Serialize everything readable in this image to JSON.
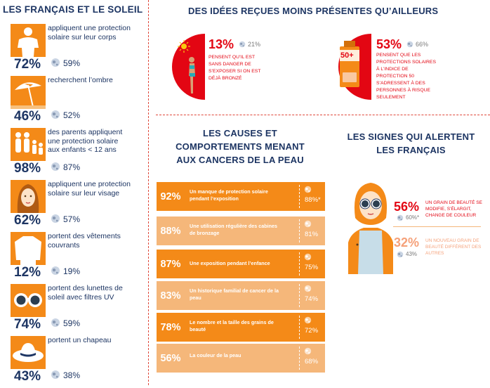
{
  "left": {
    "title": "LES FRANÇAIS ET LE SOLEIL",
    "items": [
      {
        "icon": "person-tshirt-icon",
        "text": "appliquent une protection solaire sur leur corps",
        "pct": "72%",
        "world": "59%"
      },
      {
        "icon": "beach-umbrella-icon",
        "text": "recherchent l’ombre",
        "pct": "46%",
        "world": "52%"
      },
      {
        "icon": "family-icon",
        "text": "des parents appliquent une protection solaire aux enfants < 12 ans",
        "pct": "98%",
        "world": "87%"
      },
      {
        "icon": "woman-face-icon",
        "text": "appliquent une protection solaire sur leur visage",
        "pct": "62%",
        "world": "57%"
      },
      {
        "icon": "long-sleeve-shirt-icon",
        "text": "portent des vêtements couvrants",
        "pct": "12%",
        "world": "19%"
      },
      {
        "icon": "sunglasses-icon",
        "text": "portent des lunettes de soleil avec filtres UV",
        "pct": "74%",
        "world": "59%"
      },
      {
        "icon": "sun-hat-icon",
        "text": "portent un chapeau",
        "pct": "43%",
        "world": "38%"
      }
    ]
  },
  "ideas": {
    "title": "DES IDÉES REÇUES MOINS PRÉSENTES QU’AILLEURS",
    "items": [
      {
        "icon": "tanned-woman-sun-icon",
        "pct": "13%",
        "world": "21%",
        "text": "PENSENT QU’IL EST SANS DANGER DE S’EXPOSER SI ON EST DÉJÀ BRONZÉ"
      },
      {
        "icon": "sunscreen-bottle-icon",
        "bottle_label": "50+",
        "pct": "53%",
        "world": "66%",
        "text": "PENSENT QUE LES PROTECTIONS SOLAIRES À L’INDICE DE PROTECTION 50 S’ADRESSENT À DES PERSONNES À RISQUE SEULEMENT"
      }
    ]
  },
  "causes": {
    "title_line1": "LES CAUSES ET",
    "title_line2": "COMPORTEMENTS MENANT",
    "title_line3": "AUX CANCERS DE LA PEAU"
  },
  "signs": {
    "title_line1": "LES SIGNES QUI ALERTENT",
    "title_line2": "LES FRANÇAIS",
    "items": [
      {
        "pct": "56%",
        "world": "60%*",
        "text": "UN GRAIN DE BEAUTÉ SE MODIFIE, S’ÉLARGIT, CHANGE DE COULEUR"
      },
      {
        "pct": "32%",
        "world": "43%",
        "text": "UN NOUVEAU GRAIN DE BEAUTÉ DIFFÉRENT DES AUTRES"
      }
    ]
  },
  "colors": {
    "orange": "#f48a18",
    "light_orange": "#f5b77a",
    "red": "#e30613",
    "navy": "#1d3563"
  },
  "chart_data": {
    "type": "bar",
    "title": "LES CAUSES ET COMPORTEMENTS MENANT AUX CANCERS DE LA PEAU",
    "categories": [
      "Un manque de protection solaire pendant l’exposition",
      "Une utilisation régulière des cabines de bronzage",
      "Une exposition pendant l’enfance",
      "Un historique familial de cancer de la peau",
      "Le nombre et la taille des grains de beauté",
      "La couleur de la peau"
    ],
    "series": [
      {
        "values": [
          92,
          88,
          87,
          83,
          78,
          56
        ]
      },
      {
        "values": [
          88,
          81,
          75,
          74,
          72,
          68
        ]
      }
    ],
    "value_labels": [
      "92%",
      "88%",
      "87%",
      "83%",
      "78%",
      "56%"
    ],
    "world_labels": [
      "88%*",
      "81%",
      "75%",
      "74%",
      "72%",
      "68%"
    ]
  }
}
